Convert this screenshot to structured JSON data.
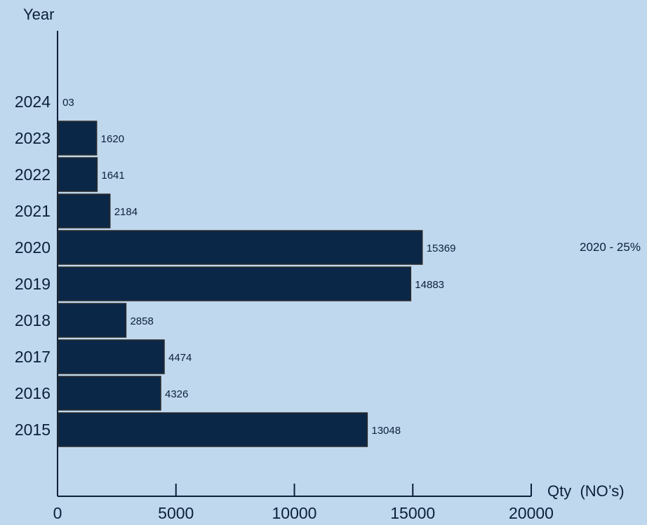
{
  "chart_data": {
    "type": "bar",
    "orientation": "horizontal",
    "ylabel": "Year",
    "xlabel": "Qty  (NO’s)",
    "categories": [
      "2015",
      "2016",
      "2017",
      "2018",
      "2019",
      "2020",
      "2021",
      "2022",
      "2023",
      "2024"
    ],
    "values": [
      13048,
      4326,
      4474,
      2858,
      14883,
      15369,
      2184,
      1641,
      1620,
      3
    ],
    "value_labels": [
      "13048",
      "4326",
      "4474",
      "2858",
      "14883",
      "15369",
      "2184",
      "1641",
      "1620",
      "03"
    ],
    "xticks": [
      "0",
      "5000",
      "10000",
      "15000",
      "20000"
    ],
    "xlim": [
      0,
      20000
    ],
    "annotation": "2020 - 25%",
    "grid": false,
    "legend": "none",
    "colors": {
      "bar": "#0b2748",
      "background": "#c0d8ee",
      "text": "#0b1f3a"
    }
  }
}
